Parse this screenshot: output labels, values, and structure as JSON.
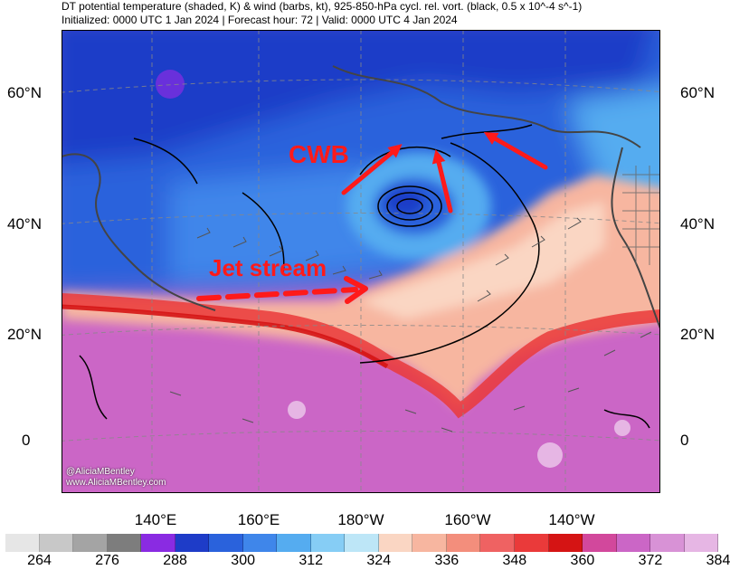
{
  "header": {
    "title": "DT potential temperature (shaded, K) & wind (barbs, kt), 925-850-hPa cycl. rel. vort. (black, 0.5 x 10^-4 s^-1)",
    "subtitle": "Initialized: 0000 UTC 1 Jan 2024 | Forecast hour: 72 | Valid: 0000 UTC 4 Jan 2024"
  },
  "axes": {
    "lat_labels": [
      "60°N",
      "40°N",
      "20°N",
      "0"
    ],
    "lon_labels": [
      "140°E",
      "160°E",
      "180°W",
      "160°W",
      "140°W"
    ]
  },
  "annotations": {
    "cwb": "CWB",
    "jet": "Jet stream",
    "annotation_color": "#ff1a1a"
  },
  "watermark": {
    "handle": "@AliciaMBentley",
    "site": "www.AliciaMBentley.com"
  },
  "colorbar": {
    "colors": [
      "#e6e6e6",
      "#c8c8c8",
      "#a4a4a4",
      "#7d7d7d",
      "#8a2be2",
      "#1e3cc8",
      "#2a62dc",
      "#3f86ea",
      "#55acf0",
      "#86cdf5",
      "#bde6f7",
      "#fad6c3",
      "#f7b6a0",
      "#f38e7c",
      "#ef6262",
      "#ea3a3a",
      "#d51414",
      "#d2489c",
      "#cb66c6",
      "#d892d6",
      "#e6b6e4"
    ],
    "labels": [
      "264",
      "276",
      "288",
      "300",
      "312",
      "324",
      "336",
      "348",
      "360",
      "372",
      "384"
    ]
  }
}
